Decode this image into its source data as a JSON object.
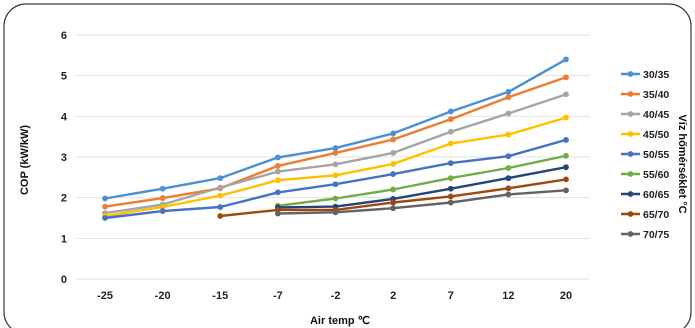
{
  "chart_data": {
    "type": "line",
    "title": "",
    "xlabel": "Air temp ℃",
    "ylabel": "COP   (kW/kW)",
    "legend_title": "Víz hőmérséklet °C",
    "legend_position": "right",
    "grid": true,
    "categories": [
      "-25",
      "-20",
      "-15",
      "-7",
      "-2",
      "2",
      "7",
      "12",
      "20"
    ],
    "yticks": [
      "0",
      "1",
      "2",
      "3",
      "4",
      "5",
      "6"
    ],
    "ylim": [
      0,
      6
    ],
    "series": [
      {
        "name": "30/35",
        "color": "#4a90d9",
        "values": [
          1.98,
          2.22,
          2.48,
          2.99,
          3.22,
          3.58,
          4.12,
          4.6,
          5.4
        ]
      },
      {
        "name": "35/40",
        "color": "#ed7d31",
        "values": [
          1.78,
          1.99,
          2.23,
          2.78,
          3.1,
          3.43,
          3.93,
          4.47,
          4.96
        ]
      },
      {
        "name": "40/45",
        "color": "#a5a5a5",
        "values": [
          1.62,
          1.83,
          2.25,
          2.64,
          2.82,
          3.1,
          3.62,
          4.07,
          4.54
        ]
      },
      {
        "name": "45/50",
        "color": "#ffc000",
        "values": [
          1.55,
          1.77,
          2.05,
          2.43,
          2.55,
          2.83,
          3.33,
          3.55,
          3.97
        ]
      },
      {
        "name": "50/55",
        "color": "#4472c4",
        "values": [
          1.5,
          1.67,
          1.77,
          2.13,
          2.33,
          2.58,
          2.85,
          3.02,
          3.42
        ]
      },
      {
        "name": "55/60",
        "color": "#70ad47",
        "values": [
          null,
          null,
          null,
          1.8,
          1.98,
          2.2,
          2.48,
          2.73,
          3.03
        ]
      },
      {
        "name": "60/65",
        "color": "#264478",
        "values": [
          null,
          null,
          null,
          1.76,
          1.78,
          1.97,
          2.22,
          2.48,
          2.75
        ]
      },
      {
        "name": "65/70",
        "color": "#9e480e",
        "values": [
          null,
          null,
          1.55,
          1.7,
          1.7,
          1.88,
          2.03,
          2.23,
          2.45
        ]
      },
      {
        "name": "70/75",
        "color": "#636363",
        "values": [
          null,
          null,
          null,
          1.61,
          1.64,
          1.74,
          1.88,
          2.08,
          2.18
        ]
      }
    ]
  }
}
